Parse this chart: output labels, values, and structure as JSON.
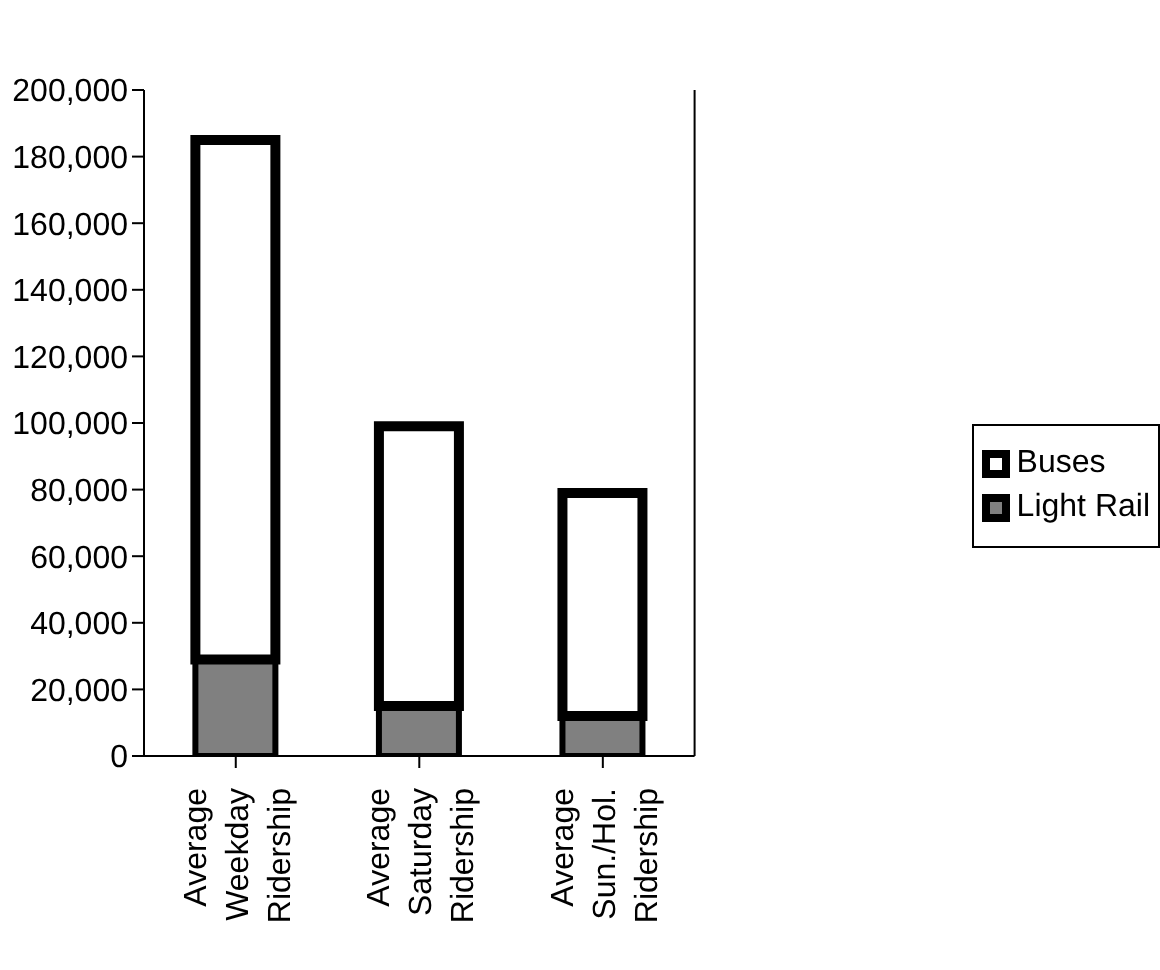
{
  "chart_data": {
    "type": "bar",
    "stacked": true,
    "categories": [
      "Average Weekday Ridership",
      "Average Saturday Ridership",
      "Average Sun./Hol. Ridership"
    ],
    "series": [
      {
        "name": "Light Rail",
        "color": "#808080",
        "values": [
          29000,
          15000,
          12000
        ]
      },
      {
        "name": "Buses",
        "color": "#ffffff",
        "values": [
          156000,
          84000,
          67000
        ]
      }
    ],
    "ylim": [
      0,
      200000
    ],
    "yticks": [
      {
        "value": 0,
        "label": "0"
      },
      {
        "value": 20000,
        "label": "20,000"
      },
      {
        "value": 40000,
        "label": "40,000"
      },
      {
        "value": 60000,
        "label": "60,000"
      },
      {
        "value": 80000,
        "label": "80,000"
      },
      {
        "value": 100000,
        "label": "100,000"
      },
      {
        "value": 120000,
        "label": "120,000"
      },
      {
        "value": 140000,
        "label": "140,000"
      },
      {
        "value": 160000,
        "label": "160,000"
      },
      {
        "value": 180000,
        "label": "180,000"
      },
      {
        "value": 200000,
        "label": "200,000"
      }
    ],
    "legend": "right"
  }
}
